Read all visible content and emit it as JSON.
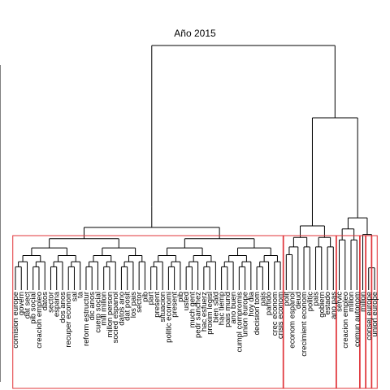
{
  "chart_data": {
    "type": "dendrogram",
    "title": "Año 2015",
    "leaves": [
      "comision europe",
      "govern",
      "dat sect",
      "pib social",
      "creacion empleo",
      "datos",
      "sector",
      "espana",
      "dos anos",
      "recuper econom",
      "sal",
      "ta",
      "reform estructur",
      "dic anos",
      "cuerp social",
      "mill millon",
      "millon person",
      "socied espanol",
      "datos ano",
      "dat posit",
      "los pais",
      "sector",
      "pib",
      "part",
      "present",
      "situacion",
      "politic economi",
      "present",
      "pib",
      "usted",
      "much gent",
      "pedr sanchez",
      "hac esfuerz",
      "proxim legisl",
      "bien sald",
      "hac tiemp",
      "pais mund",
      "ano buen",
      "cumpl compromis",
      "union europe",
      "hoy dia",
      "decision tom",
      "pais",
      "partido",
      "crec econom",
      "crisis econom",
      "polit",
      "econom espanol",
      "deud",
      "crecimient econom",
      "politic",
      "pais",
      "gobiern",
      "estado",
      "ano pas",
      "servic",
      "creacion empleo",
      "millon",
      "comun autonom",
      "millon",
      "consej europe",
      "union europe"
    ],
    "clusters": 6,
    "ylim": [
      0,
      1
    ],
    "merge_heights": {
      "root": 0.88,
      "cluster1": 0.41,
      "cluster2": 0.42,
      "cluster3": 0.4,
      "cluster4": 0.43,
      "cluster5": 0.42,
      "cluster6": 0.5
    }
  }
}
